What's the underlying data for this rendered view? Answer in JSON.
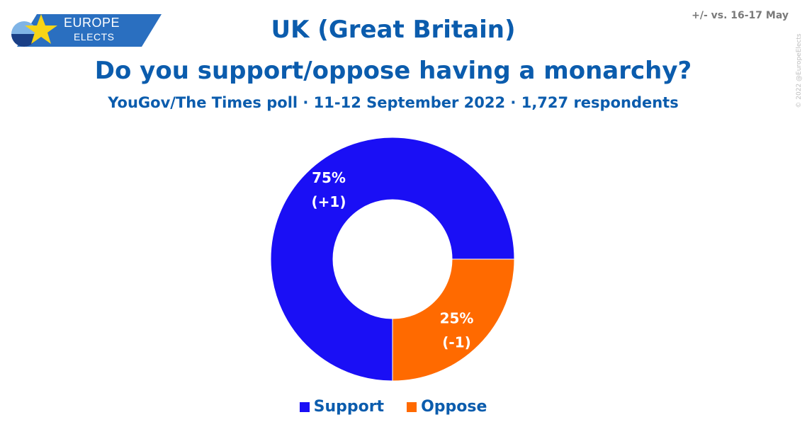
{
  "brand": {
    "line1": "EUROPE",
    "line2": "ELECTS",
    "colors": {
      "banner": "#2a6fc0",
      "star": "#f7d417",
      "circle_dark": "#1a3f86",
      "circle_light": "#7fb4e6"
    }
  },
  "compare_note": "+/- vs. 16-17 May",
  "copyright": "© 2022 @EuropeElects",
  "chart_data": {
    "type": "pie",
    "donut": true,
    "title": "UK (Great Britain)",
    "subtitle": "Do you support/oppose having a monarchy?",
    "source": "YouGov/The Times poll · 11-12 September 2022 · 1,727 respondents",
    "legend_position": "bottom",
    "slices": [
      {
        "label": "Support",
        "value": 75,
        "value_text": "75%",
        "change_text": "(+1)",
        "color": "#1a0ff5"
      },
      {
        "label": "Oppose",
        "value": 25,
        "value_text": "25%",
        "change_text": "(-1)",
        "color": "#ff6a00"
      }
    ]
  }
}
